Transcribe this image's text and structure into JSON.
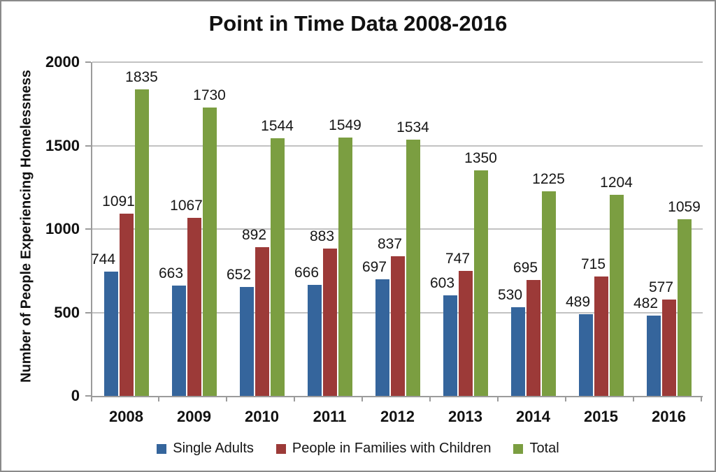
{
  "title": "Point in Time Data 2008-2016",
  "chart_data": {
    "type": "bar",
    "title": "Point in Time Data 2008-2016",
    "xlabel": "",
    "ylabel": "Number of People Experiencing Homelessness",
    "ylim": [
      0,
      2000
    ],
    "yticks": [
      0,
      500,
      1000,
      1500,
      2000
    ],
    "grid": true,
    "data_labels": true,
    "legend_position": "bottom",
    "categories": [
      "2008",
      "2009",
      "2010",
      "2011",
      "2012",
      "2013",
      "2014",
      "2015",
      "2016"
    ],
    "series": [
      {
        "name": "Single Adults",
        "color": "#35659C",
        "values": [
          744,
          663,
          652,
          666,
          697,
          603,
          530,
          489,
          482
        ]
      },
      {
        "name": "People in Families with Children",
        "color": "#9C3A38",
        "values": [
          1091,
          1067,
          892,
          883,
          837,
          747,
          695,
          715,
          577
        ]
      },
      {
        "name": "Total",
        "color": "#7B9E41",
        "values": [
          1835,
          1730,
          1544,
          1549,
          1534,
          1350,
          1225,
          1204,
          1059
        ]
      }
    ],
    "layout": {
      "grid_color": "#C2C2C2",
      "axis_color": "#9B9B9B",
      "frame_border_color": "#8A8A8A"
    }
  }
}
